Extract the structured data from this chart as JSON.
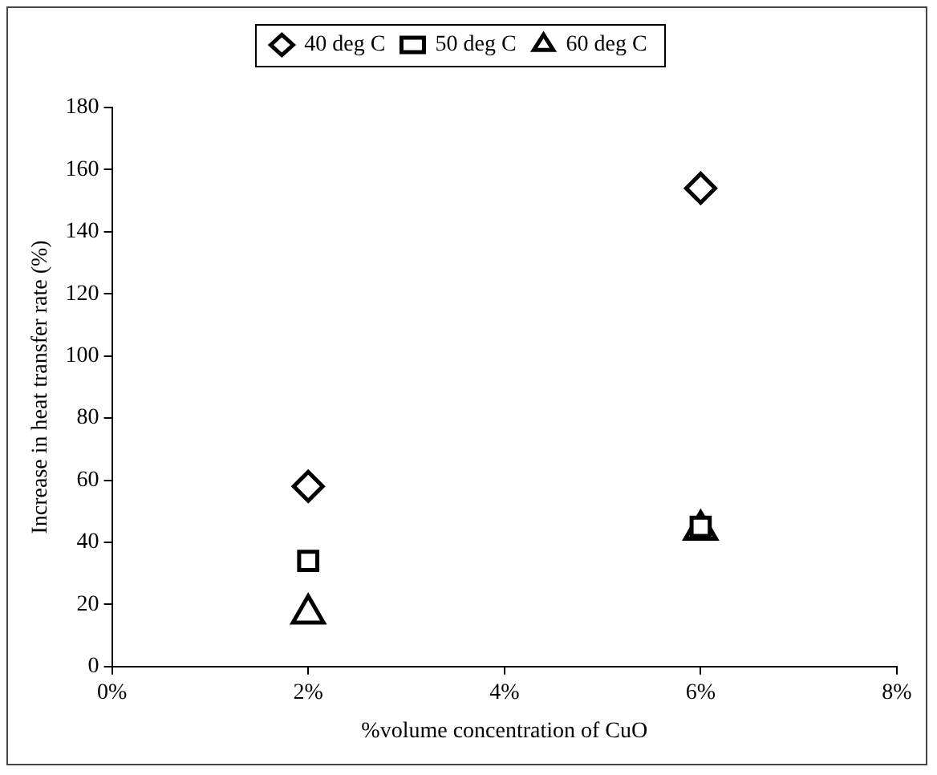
{
  "chart_data": {
    "type": "scatter",
    "xlabel": "%volume concentration of CuO",
    "ylabel": "Increase in heat transfer rate (%)",
    "x": [
      2,
      6
    ],
    "series": [
      {
        "name": "40 deg C",
        "color": "#000000",
        "marker": "diamond",
        "values": [
          58,
          154
        ]
      },
      {
        "name": "50 deg C",
        "color": "#000000",
        "marker": "square",
        "values": [
          34,
          45
        ]
      },
      {
        "name": "60 deg C",
        "color": "#000000",
        "marker": "triangle",
        "values": [
          17,
          44
        ]
      }
    ],
    "xlim": [
      0,
      8
    ],
    "xticks": [
      {
        "value": 0,
        "label": "0%"
      },
      {
        "value": 2,
        "label": "2%"
      },
      {
        "value": 4,
        "label": "4%"
      },
      {
        "value": 6,
        "label": "6%"
      },
      {
        "value": 8,
        "label": "8%"
      }
    ],
    "ylim": [
      0,
      180
    ],
    "yticks": [
      0,
      20,
      40,
      60,
      80,
      100,
      120,
      140,
      160,
      180
    ],
    "grid": false,
    "legend": "top"
  }
}
